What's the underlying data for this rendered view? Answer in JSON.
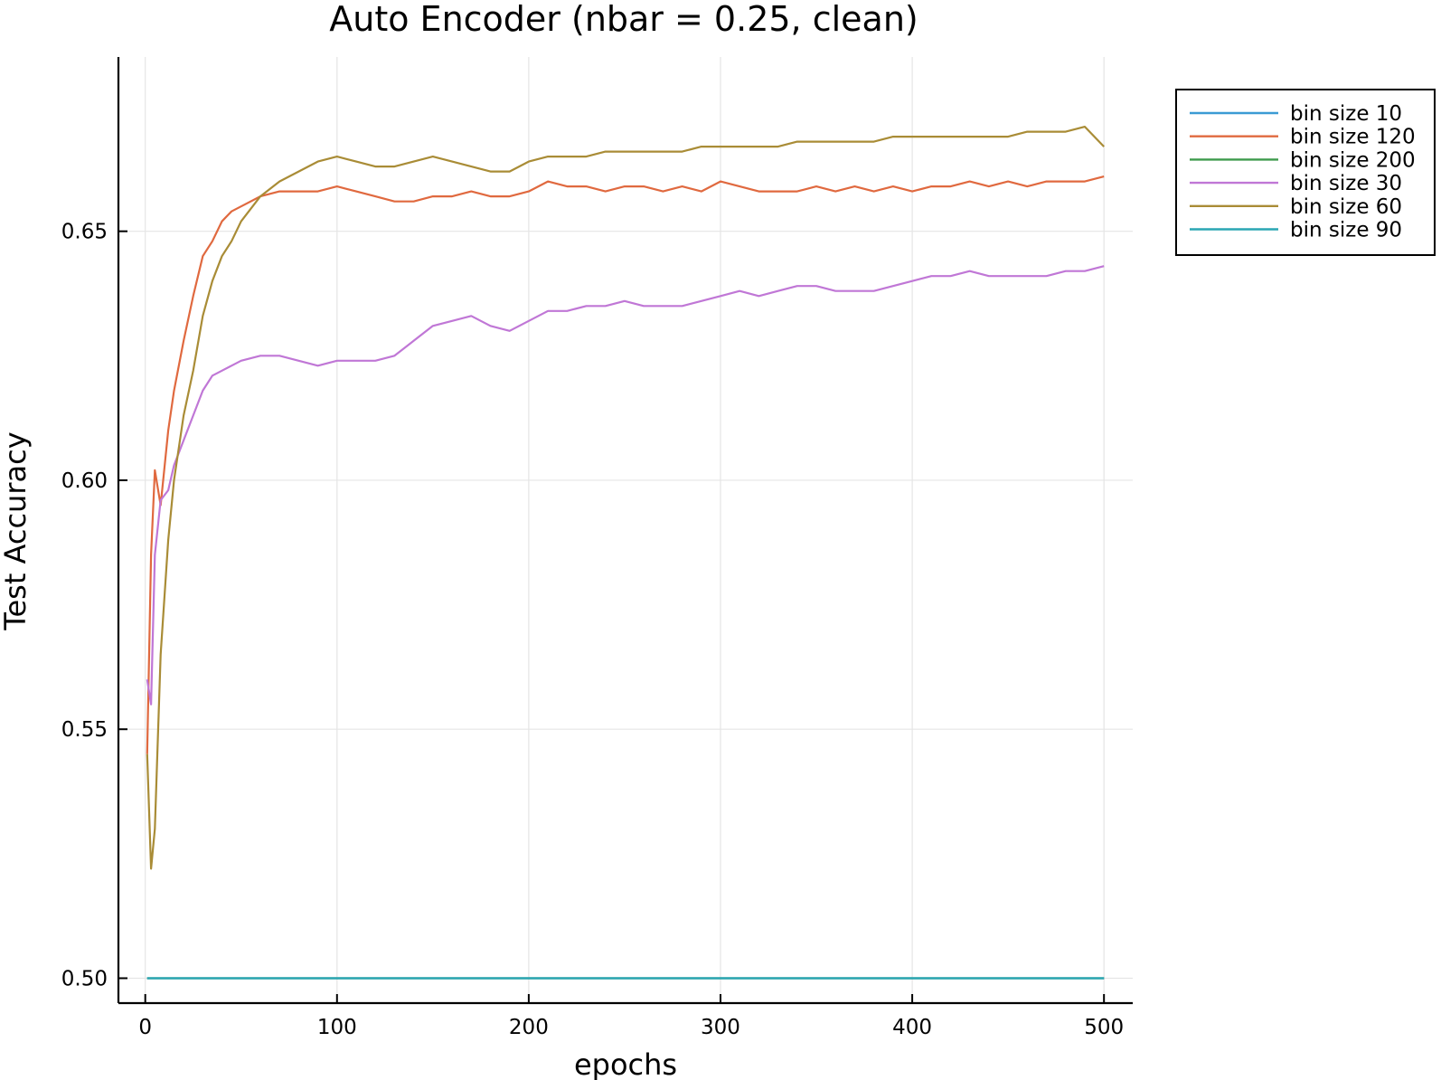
{
  "chart_data": {
    "type": "line",
    "title": "Auto Encoder (nbar = 0.25, clean)",
    "xlabel": "epochs",
    "ylabel": "Test Accuracy",
    "xlim": [
      -14,
      515
    ],
    "ylim": [
      0.495,
      0.685
    ],
    "xticks": [
      0,
      100,
      200,
      300,
      400,
      500
    ],
    "yticks": [
      0.5,
      0.55,
      0.6,
      0.65
    ],
    "xtick_labels": [
      "0",
      "100",
      "200",
      "300",
      "400",
      "500"
    ],
    "ytick_labels": [
      "0.50",
      "0.55",
      "0.60",
      "0.65"
    ],
    "grid": true,
    "legend_position": "top-right",
    "series": [
      {
        "name": "bin size 10",
        "color": "#3b9bd4",
        "x": [
          1,
          500
        ],
        "y": [
          0.5,
          0.5
        ]
      },
      {
        "name": "bin size 120",
        "color": "#e0693f",
        "x": [
          1,
          3,
          5,
          8,
          12,
          15,
          20,
          25,
          30,
          35,
          40,
          45,
          50,
          60,
          70,
          80,
          90,
          100,
          110,
          120,
          130,
          140,
          150,
          160,
          170,
          180,
          190,
          200,
          210,
          220,
          230,
          240,
          250,
          260,
          270,
          280,
          290,
          300,
          310,
          320,
          330,
          340,
          350,
          360,
          370,
          380,
          390,
          400,
          410,
          420,
          430,
          440,
          450,
          460,
          470,
          480,
          490,
          500
        ],
        "y": [
          0.545,
          0.585,
          0.602,
          0.595,
          0.61,
          0.618,
          0.628,
          0.637,
          0.645,
          0.648,
          0.652,
          0.654,
          0.655,
          0.657,
          0.658,
          0.658,
          0.658,
          0.659,
          0.658,
          0.657,
          0.656,
          0.656,
          0.657,
          0.657,
          0.658,
          0.657,
          0.657,
          0.658,
          0.66,
          0.659,
          0.659,
          0.658,
          0.659,
          0.659,
          0.658,
          0.659,
          0.658,
          0.66,
          0.659,
          0.658,
          0.658,
          0.658,
          0.659,
          0.658,
          0.659,
          0.658,
          0.659,
          0.658,
          0.659,
          0.659,
          0.66,
          0.659,
          0.66,
          0.659,
          0.66,
          0.66,
          0.66,
          0.661
        ]
      },
      {
        "name": "bin size 200",
        "color": "#3d9a4c",
        "x": [
          1,
          500
        ],
        "y": [
          0.5,
          0.5
        ]
      },
      {
        "name": "bin size 30",
        "color": "#c077d6",
        "x": [
          1,
          3,
          5,
          8,
          12,
          15,
          20,
          25,
          30,
          35,
          40,
          45,
          50,
          60,
          70,
          80,
          90,
          100,
          110,
          120,
          130,
          140,
          150,
          160,
          170,
          180,
          190,
          200,
          210,
          220,
          230,
          240,
          250,
          260,
          270,
          280,
          290,
          300,
          310,
          320,
          330,
          340,
          350,
          360,
          370,
          380,
          390,
          400,
          410,
          420,
          430,
          440,
          450,
          460,
          470,
          480,
          490,
          500
        ],
        "y": [
          0.56,
          0.555,
          0.585,
          0.596,
          0.598,
          0.603,
          0.608,
          0.613,
          0.618,
          0.621,
          0.622,
          0.623,
          0.624,
          0.625,
          0.625,
          0.624,
          0.623,
          0.624,
          0.624,
          0.624,
          0.625,
          0.628,
          0.631,
          0.632,
          0.633,
          0.631,
          0.63,
          0.632,
          0.634,
          0.634,
          0.635,
          0.635,
          0.636,
          0.635,
          0.635,
          0.635,
          0.636,
          0.637,
          0.638,
          0.637,
          0.638,
          0.639,
          0.639,
          0.638,
          0.638,
          0.638,
          0.639,
          0.64,
          0.641,
          0.641,
          0.642,
          0.641,
          0.641,
          0.641,
          0.641,
          0.642,
          0.642,
          0.643
        ]
      },
      {
        "name": "bin size 60",
        "color": "#a98c36",
        "x": [
          1,
          3,
          5,
          8,
          12,
          15,
          20,
          25,
          30,
          35,
          40,
          45,
          50,
          60,
          70,
          80,
          90,
          100,
          110,
          120,
          130,
          140,
          150,
          160,
          170,
          180,
          190,
          200,
          210,
          220,
          230,
          240,
          250,
          260,
          270,
          280,
          290,
          300,
          310,
          320,
          330,
          340,
          350,
          360,
          370,
          380,
          390,
          400,
          410,
          420,
          430,
          440,
          450,
          460,
          470,
          480,
          490,
          500
        ],
        "y": [
          0.545,
          0.522,
          0.53,
          0.565,
          0.588,
          0.6,
          0.613,
          0.622,
          0.633,
          0.64,
          0.645,
          0.648,
          0.652,
          0.657,
          0.66,
          0.662,
          0.664,
          0.665,
          0.664,
          0.663,
          0.663,
          0.664,
          0.665,
          0.664,
          0.663,
          0.662,
          0.662,
          0.664,
          0.665,
          0.665,
          0.665,
          0.666,
          0.666,
          0.666,
          0.666,
          0.666,
          0.667,
          0.667,
          0.667,
          0.667,
          0.667,
          0.668,
          0.668,
          0.668,
          0.668,
          0.668,
          0.669,
          0.669,
          0.669,
          0.669,
          0.669,
          0.669,
          0.669,
          0.67,
          0.67,
          0.67,
          0.671,
          0.667
        ]
      },
      {
        "name": "bin size 90",
        "color": "#2aa6b3",
        "x": [
          1,
          500
        ],
        "y": [
          0.5,
          0.5
        ]
      }
    ]
  }
}
